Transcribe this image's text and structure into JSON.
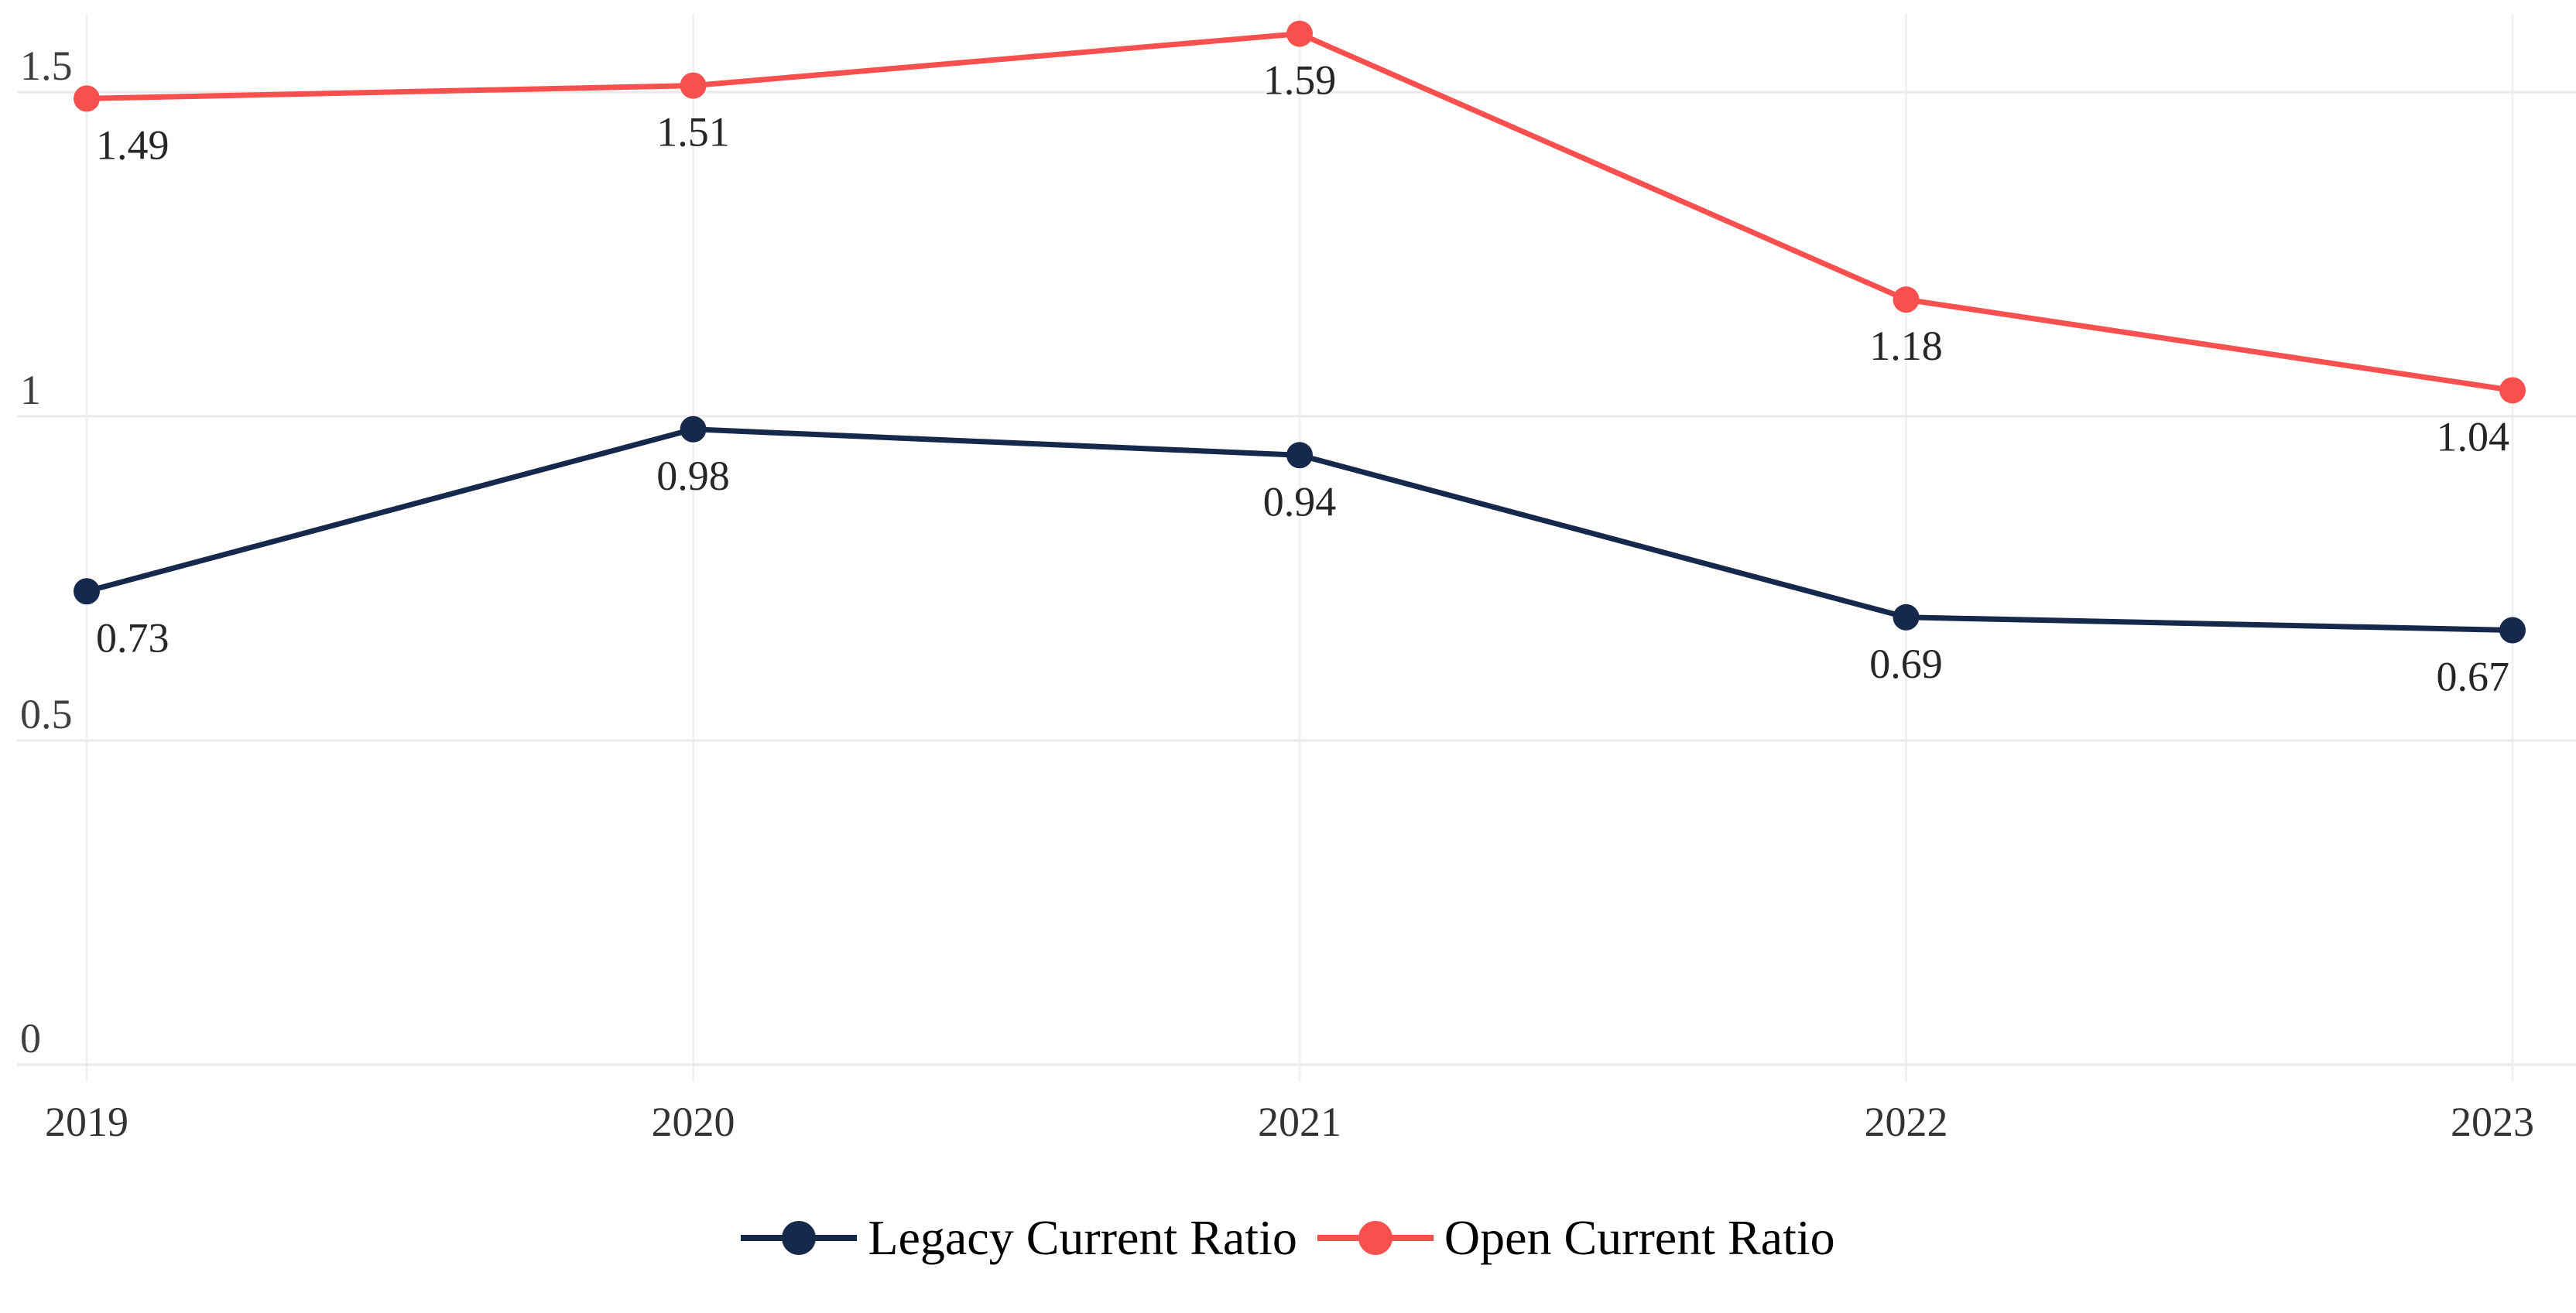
{
  "chart_data": {
    "type": "line",
    "title": "",
    "xlabel": "",
    "ylabel": "",
    "x": [
      "2019",
      "2020",
      "2021",
      "2022",
      "2023"
    ],
    "series": [
      {
        "name": "Legacy Current Ratio",
        "color": "#16294C",
        "values": [
          0.73,
          0.98,
          0.94,
          0.69,
          0.67
        ],
        "point_labels": [
          "0.73",
          "0.98",
          "0.94",
          "0.69",
          "0.67"
        ]
      },
      {
        "name": "Open Current Ratio",
        "color": "#F8504E",
        "values": [
          1.49,
          1.51,
          1.59,
          1.18,
          1.04
        ],
        "point_labels": [
          "1.49",
          "1.51",
          "1.59",
          "1.18",
          "1.04"
        ]
      }
    ],
    "yticks": [
      0,
      0.5,
      1,
      1.5
    ],
    "ytick_labels": [
      "0",
      "0.5",
      "1",
      "1.5"
    ],
    "ylim": [
      0,
      1.65
    ],
    "grid": true,
    "legend_position": "bottom",
    "marker": "circle",
    "data_labels_shown": true
  },
  "colors": {
    "background": "#FFFFFF",
    "gridline_horizontal": "#EAEAEA",
    "gridline_vertical": "#F1F1F1",
    "ytick_label": "#3F3F3F",
    "xtick_label": "#333333",
    "data_label": "#262626",
    "legend_text": "#000000"
  }
}
